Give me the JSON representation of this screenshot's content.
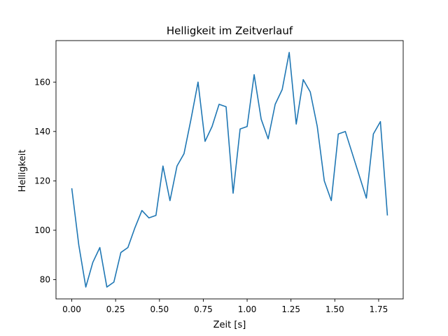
{
  "chart_data": {
    "type": "line",
    "title": "Helligkeit im Zeitverlauf",
    "xlabel": "Zeit [s]",
    "ylabel": "Helligkeit",
    "xlim": [
      -0.09,
      1.89
    ],
    "ylim": [
      72.2,
      176.8
    ],
    "xticks": [
      0.0,
      0.25,
      0.5,
      0.75,
      1.0,
      1.25,
      1.5,
      1.75
    ],
    "xtick_labels": [
      "0.00",
      "0.25",
      "0.50",
      "0.75",
      "1.00",
      "1.25",
      "1.50",
      "1.75"
    ],
    "yticks": [
      80,
      100,
      120,
      140,
      160
    ],
    "ytick_labels": [
      "80",
      "100",
      "120",
      "140",
      "160"
    ],
    "grid": false,
    "legend": "none",
    "line_color": "#1f77b4",
    "series": [
      {
        "x": [
          0.0,
          0.04,
          0.08,
          0.12,
          0.16,
          0.2,
          0.24,
          0.28,
          0.32,
          0.36,
          0.4,
          0.44,
          0.48,
          0.52,
          0.56,
          0.6,
          0.64,
          0.68,
          0.72,
          0.76,
          0.8,
          0.84,
          0.88,
          0.92,
          0.96,
          1.0,
          1.04,
          1.08,
          1.12,
          1.16,
          1.2,
          1.24,
          1.28,
          1.32,
          1.36,
          1.4,
          1.44,
          1.48,
          1.52,
          1.56,
          1.6,
          1.64,
          1.68,
          1.72,
          1.76,
          1.8
        ],
        "values": [
          117,
          94,
          77,
          87,
          93,
          77,
          79,
          91,
          93,
          101,
          108,
          105,
          106,
          126,
          112,
          126,
          131,
          145,
          160,
          136,
          142,
          151,
          150,
          115,
          141,
          142,
          163,
          145,
          137,
          151,
          157,
          172,
          143,
          161,
          156,
          142,
          120,
          112,
          139,
          140,
          131,
          122,
          113,
          139,
          144,
          106
        ]
      }
    ]
  }
}
